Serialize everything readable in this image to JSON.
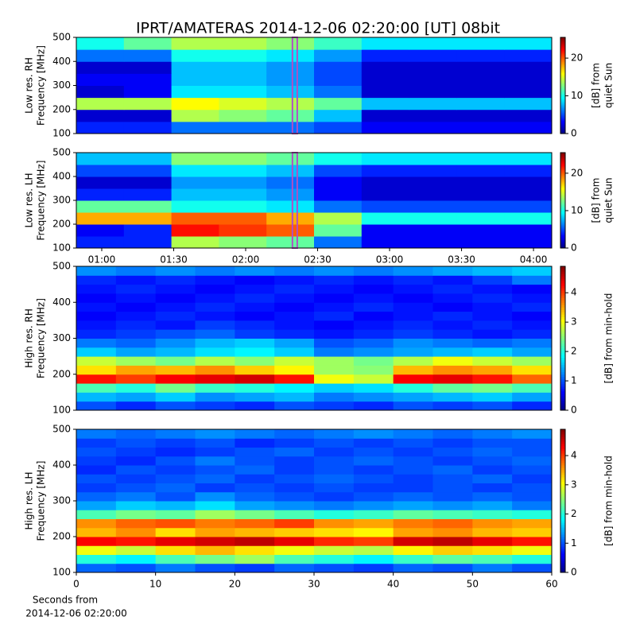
{
  "chart_data": [
    {
      "type": "heatmap",
      "title": "IPRT/AMATERAS 2014-12-06 02:20:00 [UT]   08bit",
      "colormap": "jet",
      "ylabel": [
        "Low res. RH",
        "Frequency [MHz]"
      ],
      "ylim": [
        100,
        500
      ],
      "yticks": [
        100,
        200,
        300,
        400,
        500
      ],
      "xlim": [
        49.4,
        247.6
      ],
      "highlight": [
        139.5,
        141.5
      ],
      "highlight_color": "#b14fc5",
      "zlim": [
        0,
        25.5
      ],
      "zticks": [
        0,
        10,
        20
      ],
      "colorbar_label": [
        "[dB] from",
        "quiet Sun"
      ],
      "z": [
        [
          4,
          4,
          6,
          6,
          6,
          5,
          3,
          3,
          3,
          3
        ],
        [
          2,
          2,
          14,
          13,
          12,
          8,
          2,
          2,
          2,
          2
        ],
        [
          14,
          14,
          16,
          15,
          14,
          12,
          8,
          8,
          8,
          8
        ],
        [
          2,
          3,
          9,
          9,
          8,
          6,
          2,
          2,
          2,
          2
        ],
        [
          3,
          3,
          8,
          8,
          7,
          5,
          2,
          2,
          2,
          2
        ],
        [
          2,
          2,
          8,
          8,
          7,
          5,
          2,
          2,
          2,
          2
        ],
        [
          6,
          6,
          10,
          10,
          9,
          7,
          4,
          4,
          4,
          4
        ],
        [
          10,
          12,
          14,
          14,
          13,
          11,
          9,
          9,
          9,
          9
        ]
      ]
    },
    {
      "type": "heatmap",
      "colormap": "jet",
      "ylabel": [
        "Low res. LH",
        "Frequency [MHz]"
      ],
      "ylim": [
        100,
        500
      ],
      "yticks": [
        100,
        200,
        300,
        400,
        500
      ],
      "xlim": [
        49.4,
        247.6
      ],
      "xticks": [
        {
          "value": 60,
          "label": "01:00"
        },
        {
          "value": 90,
          "label": "01:30"
        },
        {
          "value": 120,
          "label": "02:00"
        },
        {
          "value": 150,
          "label": "02:30"
        },
        {
          "value": 180,
          "label": "03:00"
        },
        {
          "value": 210,
          "label": "03:30"
        },
        {
          "value": 240,
          "label": "04:00"
        }
      ],
      "highlight": [
        139.5,
        141.5
      ],
      "highlight_color": "#b14fc5",
      "zlim": [
        0,
        25.5
      ],
      "zticks": [
        0,
        10,
        20
      ],
      "colorbar_label": [
        "[dB] from",
        "quiet Sun"
      ],
      "z": [
        [
          4,
          4,
          14,
          13,
          12,
          6,
          3,
          3,
          3,
          3
        ],
        [
          3,
          4,
          22,
          21,
          20,
          12,
          3,
          3,
          3,
          3
        ],
        [
          18,
          18,
          20,
          20,
          18,
          14,
          10,
          10,
          10,
          10
        ],
        [
          12,
          12,
          10,
          10,
          9,
          6,
          5,
          5,
          5,
          5
        ],
        [
          4,
          4,
          8,
          8,
          7,
          3,
          2,
          2,
          2,
          2
        ],
        [
          2,
          2,
          7,
          7,
          6,
          3,
          2,
          2,
          2,
          2
        ],
        [
          5,
          5,
          9,
          9,
          8,
          5,
          4,
          4,
          4,
          4
        ],
        [
          8,
          8,
          13,
          13,
          12,
          10,
          9,
          9,
          9,
          9
        ]
      ]
    },
    {
      "type": "heatmap",
      "colormap": "jet",
      "ylabel": [
        "High res. RH",
        "Frequency [MHz]"
      ],
      "ylim": [
        100,
        500
      ],
      "yticks": [
        100,
        200,
        300,
        400,
        500
      ],
      "xlim": [
        0,
        60
      ],
      "zlim": [
        0,
        4.9
      ],
      "zticks": [
        0,
        1,
        2,
        3,
        4
      ],
      "colorbar_label": [
        "[dB] from min-hold"
      ],
      "z": [
        [
          1,
          0.8,
          1,
          0.9,
          0.8,
          1,
          0.9,
          0.8,
          1,
          0.9,
          1,
          0.8
        ],
        [
          1.5,
          1.4,
          1.6,
          1.3,
          1.4,
          1.5,
          1.2,
          1.3,
          1.4,
          1.5,
          1.6,
          1.4
        ],
        [
          2.2,
          2,
          2.4,
          2.1,
          2,
          1.8,
          1.6,
          1.7,
          2,
          2.3,
          2.4,
          2.2
        ],
        [
          4.2,
          4,
          4.3,
          4.4,
          4.5,
          4.2,
          3,
          2.8,
          4.3,
          4.4,
          4.2,
          3.8
        ],
        [
          3.2,
          3.5,
          3.4,
          3.6,
          3.3,
          3.1,
          2.6,
          2.5,
          3.4,
          3.6,
          3.5,
          3.2
        ],
        [
          2.8,
          2.6,
          2.4,
          2.7,
          2.5,
          2.8,
          2.6,
          2.4,
          2.7,
          3,
          2.8,
          2.6
        ],
        [
          1.6,
          1.4,
          1.5,
          1.7,
          1.8,
          1.6,
          1.2,
          1.3,
          1.4,
          1.5,
          1.6,
          1.4
        ],
        [
          1.2,
          1.1,
          1.3,
          1.5,
          1.6,
          1.4,
          1,
          1.1,
          1.3,
          1.2,
          1.1,
          1.2
        ],
        [
          0.8,
          0.9,
          1,
          1.1,
          0.9,
          0.8,
          0.7,
          0.8,
          0.9,
          0.8,
          0.7,
          0.8
        ],
        [
          0.7,
          0.8,
          0.7,
          0.9,
          0.8,
          0.7,
          0.6,
          0.7,
          0.8,
          0.7,
          0.8,
          0.7
        ],
        [
          0.6,
          0.7,
          0.8,
          0.7,
          0.6,
          0.7,
          0.8,
          0.6,
          0.7,
          0.8,
          0.7,
          0.6
        ],
        [
          0.7,
          0.6,
          0.7,
          0.8,
          0.7,
          0.6,
          0.7,
          0.8,
          0.7,
          0.6,
          0.7,
          0.8
        ],
        [
          0.6,
          0.7,
          0.6,
          0.7,
          0.8,
          0.7,
          0.6,
          0.7,
          0.6,
          0.7,
          0.8,
          0.7
        ],
        [
          0.7,
          0.8,
          0.7,
          0.6,
          0.7,
          0.8,
          0.7,
          0.6,
          0.7,
          0.8,
          0.7,
          0.6
        ],
        [
          0.8,
          0.7,
          0.8,
          0.7,
          0.6,
          0.7,
          0.8,
          0.7,
          0.8,
          0.7,
          0.9,
          1.2
        ],
        [
          1.3,
          1.2,
          1.3,
          1.2,
          1.3,
          1.2,
          1.3,
          1.2,
          1.3,
          1.4,
          1.5,
          1.6
        ]
      ]
    },
    {
      "type": "heatmap",
      "colormap": "jet",
      "ylabel": [
        "High res. LH",
        "Frequency [MHz]"
      ],
      "ylim": [
        100,
        500
      ],
      "yticks": [
        100,
        200,
        300,
        400,
        500
      ],
      "xlim": [
        0,
        60
      ],
      "xticks": [
        0,
        10,
        20,
        30,
        40,
        50,
        60
      ],
      "xlabel": [
        "Seconds from",
        "2014-12-06 02:20:00"
      ],
      "zlim": [
        0,
        4.9
      ],
      "zticks": [
        0,
        1,
        2,
        3,
        4
      ],
      "colorbar_label": [
        "[dB] from min-hold"
      ],
      "z": [
        [
          1.1,
          1,
          1.2,
          1,
          0.9,
          1.1,
          1,
          0.9,
          1.1,
          1,
          1.2,
          1
        ],
        [
          2,
          1.8,
          2.2,
          2.4,
          2.6,
          2.2,
          2,
          1.8,
          2.1,
          2.3,
          2.2,
          2
        ],
        [
          3,
          2.8,
          3.2,
          3.4,
          3.2,
          3,
          2.8,
          2.7,
          3.1,
          3.3,
          3.2,
          3
        ],
        [
          4.3,
          4.2,
          4.4,
          4.5,
          4.6,
          4.4,
          4.1,
          4,
          4.5,
          4.6,
          4.4,
          4.2
        ],
        [
          3.4,
          3.6,
          3.2,
          3.5,
          3.4,
          3.3,
          3.2,
          3.1,
          3.5,
          3.6,
          3.4,
          3.3
        ],
        [
          3.6,
          3.8,
          3.9,
          3.7,
          3.8,
          4,
          3.6,
          3.5,
          3.7,
          3.8,
          3.6,
          3.5
        ],
        [
          2.2,
          2.4,
          2.3,
          2.6,
          2.4,
          2.2,
          2,
          2.1,
          2.3,
          2.2,
          2.1,
          2
        ],
        [
          1.4,
          1.6,
          1.5,
          1.7,
          1.4,
          1.3,
          1.2,
          1.3,
          1.4,
          1.3,
          1.4,
          1.2
        ],
        [
          1.1,
          1.2,
          1,
          1.3,
          1.1,
          1,
          0.9,
          1,
          1.1,
          1,
          1.1,
          1
        ],
        [
          0.9,
          1,
          1.1,
          0.9,
          1,
          0.9,
          1,
          0.9,
          0.9,
          1,
          0.9,
          1
        ],
        [
          1,
          0.9,
          1,
          1.1,
          0.9,
          1,
          1.1,
          1,
          0.9,
          1,
          1.1,
          0.9
        ],
        [
          0.8,
          1,
          0.9,
          1,
          1.1,
          0.9,
          1,
          0.9,
          1,
          1.1,
          0.9,
          1
        ],
        [
          0.9,
          0.8,
          1,
          1.2,
          1,
          0.9,
          1,
          1.1,
          1,
          0.9,
          1,
          1.1
        ],
        [
          1,
          0.9,
          0.8,
          0.9,
          1,
          1.1,
          0.9,
          1,
          0.9,
          1,
          1.1,
          1
        ],
        [
          0.9,
          1,
          0.9,
          1,
          0.8,
          0.9,
          1,
          0.9,
          1,
          0.9,
          1,
          1
        ],
        [
          1.2,
          1.1,
          1.2,
          1.3,
          1.2,
          1.1,
          1.2,
          1.3,
          1.2,
          1.1,
          1.2,
          1.3
        ]
      ]
    }
  ]
}
